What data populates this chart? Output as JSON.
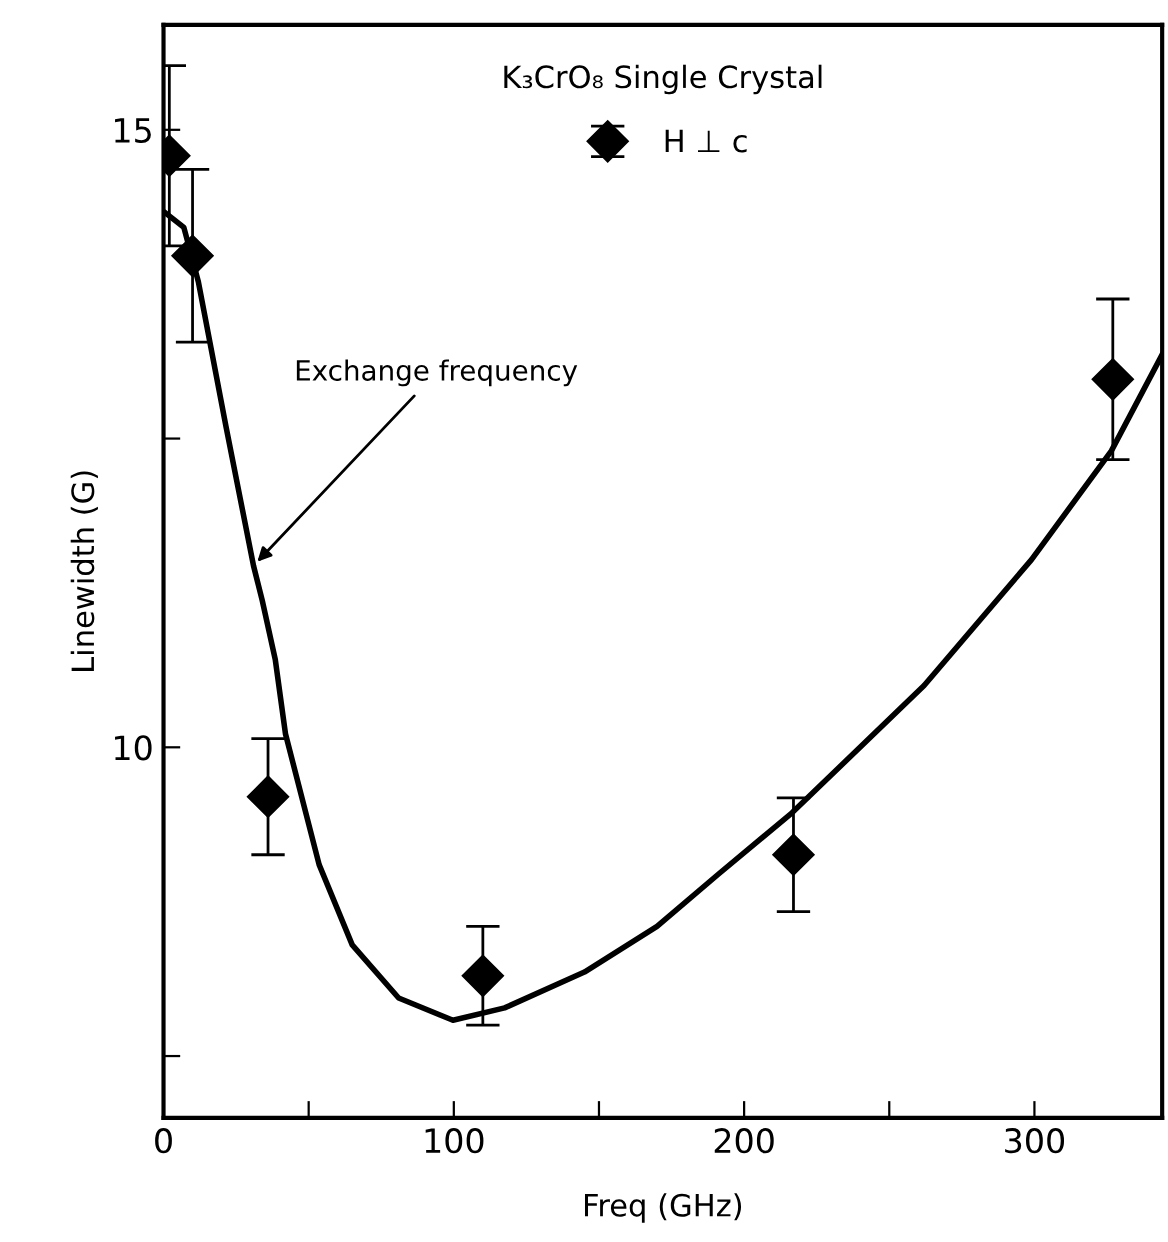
{
  "chart_data": {
    "type": "scatter",
    "title": "K₃CrO₈ Single Crystal",
    "xlabel": "Freq (GHz)",
    "ylabel": "Linewidth (G)",
    "annotations": [
      {
        "text": "Exchange frequency",
        "x": 31,
        "y": 11.47
      }
    ],
    "series": [
      {
        "name": "H ⊥ c",
        "color": "#000000",
        "marker": "diamond",
        "x": [
          2,
          10,
          36,
          110,
          217,
          327
        ],
        "values": [
          14.79,
          13.98,
          9.6,
          8.15,
          9.13,
          12.98
        ],
        "errors": [
          0.73,
          0.7,
          0.47,
          0.4,
          0.46,
          0.65
        ]
      },
      {
        "type": "line",
        "color": "#000000",
        "marker": "none",
        "line_style": "solid",
        "x": [
          0,
          7,
          12,
          21.5,
          31,
          34,
          38.5,
          42,
          53.6,
          65,
          81,
          99.7,
          117.5,
          145,
          170,
          191,
          216.5,
          262,
          299,
          326.5,
          344
        ],
        "values": [
          14.34,
          14.21,
          13.77,
          12.6,
          11.47,
          11.19,
          10.71,
          10.11,
          9.05,
          8.4,
          7.97,
          7.79,
          7.89,
          8.18,
          8.55,
          8.97,
          9.47,
          10.5,
          11.52,
          12.4,
          13.18
        ]
      }
    ],
    "xlim": [
      0,
      344
    ],
    "ylim": [
      7.0,
      15.85
    ],
    "xticks": [
      0,
      {
        "value": 50,
        "label": null
      },
      100,
      {
        "value": 150,
        "label": null
      },
      200,
      {
        "value": 250,
        "label": null
      },
      300
    ],
    "yticks": [
      {
        "value": 7.5,
        "label": null
      },
      10,
      {
        "value": 12.5,
        "label": null
      },
      15
    ],
    "grid": false,
    "legend": "top"
  }
}
